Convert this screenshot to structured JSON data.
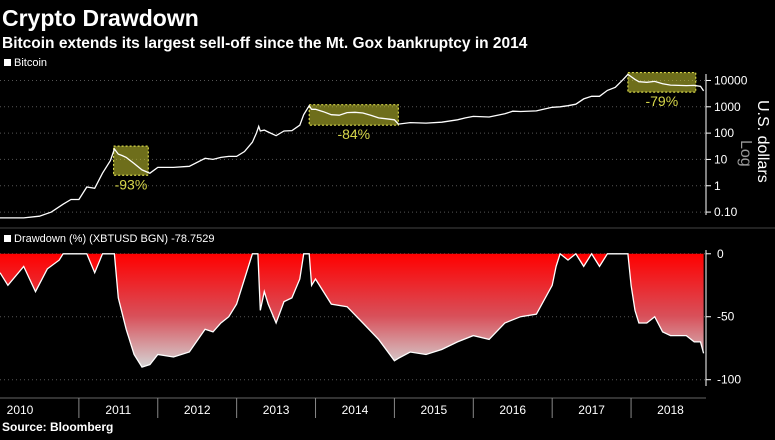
{
  "title": "Crypto Drawdown",
  "subtitle": "Bitcoin extends its largest sell-off since the Mt. Gox bankruptcy in 2014",
  "source": "Source: Bloomberg",
  "colors": {
    "bg": "#000000",
    "line": "#ffffff",
    "highlight": "#d6d64a",
    "drawdown_top": "#e8161b",
    "drawdown_bottom": "#d9d9d9"
  },
  "chart_data": [
    {
      "type": "line",
      "title": "Bitcoin",
      "legend": "Bitcoin",
      "ylabel": "U.S. dollars",
      "ylabel_scale": "Log",
      "yscale": "log",
      "ylim": [
        0.05,
        25000
      ],
      "xlim": [
        2010.0,
        2018.95
      ],
      "yticks": [
        10000,
        1000,
        100,
        10,
        1,
        0.1
      ],
      "ytick_labels": [
        "10000",
        "1000",
        "100",
        "10",
        "1",
        "0.10"
      ],
      "x": [
        2010.0,
        2010.3,
        2010.5,
        2010.65,
        2010.8,
        2010.9,
        2011.0,
        2011.1,
        2011.2,
        2011.3,
        2011.4,
        2011.45,
        2011.5,
        2011.55,
        2011.6,
        2011.7,
        2011.8,
        2011.9,
        2012.0,
        2012.2,
        2012.4,
        2012.6,
        2012.7,
        2012.8,
        2012.9,
        2013.0,
        2013.1,
        2013.2,
        2013.25,
        2013.28,
        2013.3,
        2013.35,
        2013.4,
        2013.5,
        2013.6,
        2013.7,
        2013.8,
        2013.85,
        2013.92,
        2013.95,
        2014.0,
        2014.1,
        2014.2,
        2014.3,
        2014.4,
        2014.5,
        2014.6,
        2014.7,
        2014.8,
        2014.9,
        2015.0,
        2015.05,
        2015.2,
        2015.4,
        2015.6,
        2015.8,
        2015.9,
        2016.0,
        2016.2,
        2016.4,
        2016.5,
        2016.6,
        2016.8,
        2017.0,
        2017.1,
        2017.2,
        2017.3,
        2017.4,
        2017.5,
        2017.6,
        2017.7,
        2017.8,
        2017.9,
        2017.96,
        2018.0,
        2018.05,
        2018.1,
        2018.2,
        2018.3,
        2018.4,
        2018.5,
        2018.6,
        2018.7,
        2018.8,
        2018.88,
        2018.92
      ],
      "y": [
        0.06,
        0.06,
        0.07,
        0.1,
        0.2,
        0.3,
        0.3,
        0.9,
        0.8,
        3,
        9,
        25,
        16,
        14,
        12,
        7,
        4,
        3,
        5,
        5,
        5.5,
        11,
        10,
        12,
        13,
        13,
        20,
        45,
        100,
        180,
        120,
        130,
        110,
        80,
        120,
        125,
        200,
        500,
        1100,
        800,
        800,
        650,
        500,
        480,
        600,
        620,
        580,
        480,
        380,
        350,
        320,
        220,
        250,
        240,
        260,
        320,
        380,
        430,
        410,
        540,
        680,
        660,
        700,
        960,
        1000,
        1100,
        1250,
        2000,
        2500,
        2500,
        4200,
        5500,
        11000,
        17000,
        14000,
        11000,
        9000,
        8500,
        9200,
        7500,
        6700,
        6500,
        6400,
        6500,
        6000,
        4000
      ],
      "annotations": [
        {
          "label": "-93%",
          "x0": 2011.44,
          "x1": 2011.88,
          "y0": 2.5,
          "y1": 32
        },
        {
          "label": "-84%",
          "x0": 2013.92,
          "x1": 2015.05,
          "y0": 200,
          "y1": 1200
        },
        {
          "label": "-79%",
          "x0": 2017.96,
          "x1": 2018.82,
          "y0": 3600,
          "y1": 20000
        }
      ]
    },
    {
      "type": "area",
      "title": "Drawdown (%)",
      "legend": "Drawdown (%) (XBTUSD BGN) -78.7529",
      "ylim": [
        -105,
        3
      ],
      "yticks": [
        0,
        -50,
        -100
      ],
      "ytick_labels": [
        "0",
        "-50",
        "-100"
      ],
      "x": [
        2010.0,
        2010.1,
        2010.3,
        2010.45,
        2010.6,
        2010.75,
        2010.8,
        2010.9,
        2011.0,
        2011.1,
        2011.2,
        2011.3,
        2011.4,
        2011.45,
        2011.5,
        2011.6,
        2011.7,
        2011.8,
        2011.9,
        2012.0,
        2012.2,
        2012.4,
        2012.6,
        2012.7,
        2012.8,
        2012.9,
        2013.0,
        2013.1,
        2013.2,
        2013.27,
        2013.3,
        2013.35,
        2013.4,
        2013.5,
        2013.6,
        2013.7,
        2013.8,
        2013.85,
        2013.92,
        2013.95,
        2014.0,
        2014.2,
        2014.4,
        2014.6,
        2014.8,
        2015.0,
        2015.05,
        2015.2,
        2015.4,
        2015.6,
        2015.8,
        2016.0,
        2016.2,
        2016.4,
        2016.6,
        2016.8,
        2017.0,
        2017.05,
        2017.1,
        2017.2,
        2017.3,
        2017.4,
        2017.5,
        2017.6,
        2017.7,
        2017.8,
        2017.9,
        2017.96,
        2018.0,
        2018.05,
        2018.1,
        2018.2,
        2018.3,
        2018.4,
        2018.5,
        2018.6,
        2018.7,
        2018.8,
        2018.88,
        2018.92
      ],
      "y": [
        -15,
        -25,
        -10,
        -30,
        -12,
        -5,
        0,
        0,
        0,
        0,
        -15,
        0,
        0,
        0,
        -35,
        -60,
        -80,
        -90,
        -88,
        -80,
        -82,
        -78,
        -60,
        -62,
        -55,
        -50,
        -40,
        -20,
        0,
        0,
        -45,
        -30,
        -40,
        -55,
        -38,
        -35,
        -20,
        0,
        0,
        -25,
        -20,
        -40,
        -42,
        -55,
        -68,
        -85,
        -83,
        -78,
        -80,
        -76,
        -70,
        -65,
        -68,
        -55,
        -50,
        -48,
        -25,
        -10,
        0,
        -5,
        0,
        -10,
        0,
        -10,
        0,
        0,
        0,
        0,
        -25,
        -45,
        -55,
        -55,
        -50,
        -62,
        -65,
        -65,
        -65,
        -70,
        -70,
        -79
      ]
    }
  ],
  "x_axis": {
    "labels": [
      "2010",
      "2011",
      "2012",
      "2013",
      "2014",
      "2015",
      "2016",
      "2017",
      "2018"
    ]
  }
}
